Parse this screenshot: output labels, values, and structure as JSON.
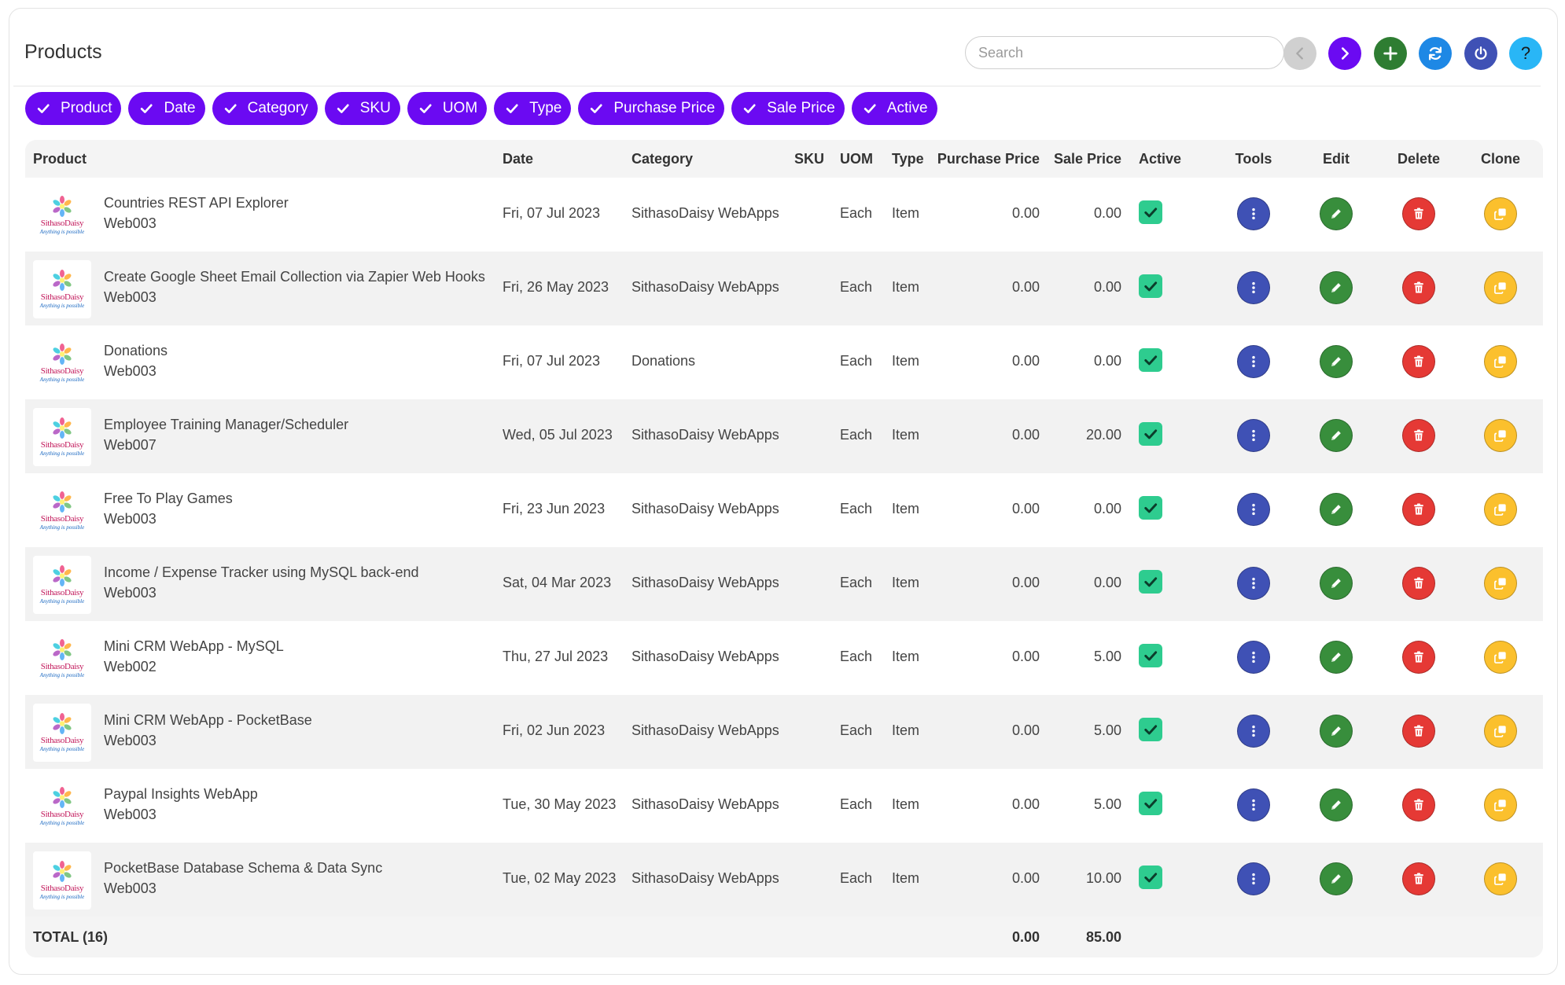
{
  "header": {
    "title": "Products",
    "search_placeholder": "Search",
    "search_value": ""
  },
  "buttons": {
    "prev_icon": "chevron-left-icon",
    "next_icon": "chevron-right-icon",
    "add_icon": "plus-icon",
    "refresh_icon": "refresh-icon",
    "power_icon": "power-icon",
    "help_label": "?"
  },
  "chips": [
    "Product",
    "Date",
    "Category",
    "SKU",
    "UOM",
    "Type",
    "Purchase Price",
    "Sale Price",
    "Active"
  ],
  "columns": {
    "product": "Product",
    "date": "Date",
    "category": "Category",
    "sku": "SKU",
    "uom": "UOM",
    "type": "Type",
    "purchase_price": "Purchase Price",
    "sale_price": "Sale Price",
    "active": "Active",
    "tools": "Tools",
    "edit": "Edit",
    "delete": "Delete",
    "clone": "Clone"
  },
  "logo": {
    "name": "SithasoDaisy",
    "tagline": "Anything is possible"
  },
  "rows": [
    {
      "name": "Countries REST API Explorer",
      "sku": "Web003",
      "date": "Fri, 07 Jul 2023",
      "category": "SithasoDaisy WebApps",
      "uom": "Each",
      "type": "Item",
      "purchase_price": "0.00",
      "sale_price": "0.00",
      "active": true
    },
    {
      "name": "Create Google Sheet Email Collection via Zapier Web Hooks",
      "sku": "Web003",
      "date": "Fri, 26 May 2023",
      "category": "SithasoDaisy WebApps",
      "uom": "Each",
      "type": "Item",
      "purchase_price": "0.00",
      "sale_price": "0.00",
      "active": true
    },
    {
      "name": "Donations",
      "sku": "Web003",
      "date": "Fri, 07 Jul 2023",
      "category": "Donations",
      "uom": "Each",
      "type": "Item",
      "purchase_price": "0.00",
      "sale_price": "0.00",
      "active": true
    },
    {
      "name": "Employee Training Manager/Scheduler",
      "sku": "Web007",
      "date": "Wed, 05 Jul 2023",
      "category": "SithasoDaisy WebApps",
      "uom": "Each",
      "type": "Item",
      "purchase_price": "0.00",
      "sale_price": "20.00",
      "active": true
    },
    {
      "name": "Free To Play Games",
      "sku": "Web003",
      "date": "Fri, 23 Jun 2023",
      "category": "SithasoDaisy WebApps",
      "uom": "Each",
      "type": "Item",
      "purchase_price": "0.00",
      "sale_price": "0.00",
      "active": true
    },
    {
      "name": "Income / Expense Tracker using MySQL back-end",
      "sku": "Web003",
      "date": "Sat, 04 Mar 2023",
      "category": "SithasoDaisy WebApps",
      "uom": "Each",
      "type": "Item",
      "purchase_price": "0.00",
      "sale_price": "0.00",
      "active": true
    },
    {
      "name": "Mini CRM WebApp - MySQL",
      "sku": "Web002",
      "date": "Thu, 27 Jul 2023",
      "category": "SithasoDaisy WebApps",
      "uom": "Each",
      "type": "Item",
      "purchase_price": "0.00",
      "sale_price": "5.00",
      "active": true
    },
    {
      "name": "Mini CRM WebApp - PocketBase",
      "sku": "Web003",
      "date": "Fri, 02 Jun 2023",
      "category": "SithasoDaisy WebApps",
      "uom": "Each",
      "type": "Item",
      "purchase_price": "0.00",
      "sale_price": "5.00",
      "active": true
    },
    {
      "name": "Paypal Insights WebApp",
      "sku": "Web003",
      "date": "Tue, 30 May 2023",
      "category": "SithasoDaisy WebApps",
      "uom": "Each",
      "type": "Item",
      "purchase_price": "0.00",
      "sale_price": "5.00",
      "active": true
    },
    {
      "name": "PocketBase Database Schema & Data Sync",
      "sku": "Web003",
      "date": "Tue, 02 May 2023",
      "category": "SithasoDaisy WebApps",
      "uom": "Each",
      "type": "Item",
      "purchase_price": "0.00",
      "sale_price": "10.00",
      "active": true
    }
  ],
  "totals": {
    "label": "TOTAL (16)",
    "purchase_price": "0.00",
    "sale_price": "85.00"
  },
  "colors": {
    "chip": "#6b0af2",
    "next": "#6b0af2",
    "add": "#2e7d32",
    "refresh": "#1e88e5",
    "power": "#3f51b5",
    "help": "#29b6f6",
    "prev_disabled": "#d0d0d0",
    "tools": "#3f51b5",
    "edit": "#388e3c",
    "delete": "#e53935",
    "clone": "#fbc02d",
    "active_check": "#2ecc8f"
  }
}
